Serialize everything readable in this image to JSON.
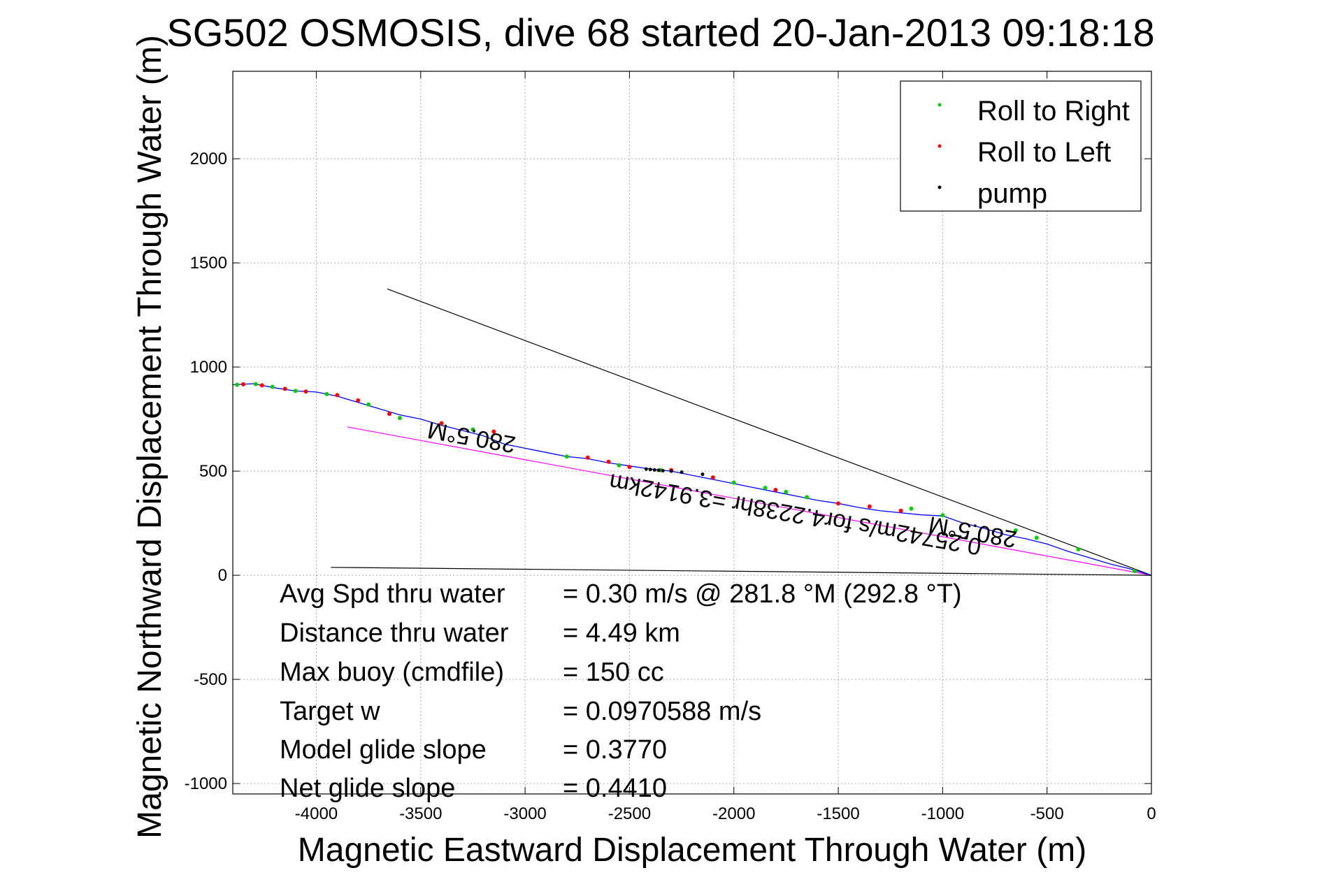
{
  "chart_data": {
    "type": "scatter",
    "title": "SG502 OSMOSIS, dive 68 started 20-Jan-2013 09:18:18",
    "xlabel": "Magnetic Eastward Displacement Through Water (m)",
    "ylabel": "Magnetic Northward Displacement Through Water (m)",
    "xlim": [
      -4400,
      0
    ],
    "ylim": [
      -1050,
      2420
    ],
    "xticks": [
      -4000,
      -3500,
      -3000,
      -2500,
      -2000,
      -1500,
      -1000,
      -500,
      0
    ],
    "xtick_labels": [
      "-4000",
      "-3500",
      "-3000",
      "-2500",
      "-2000",
      "-1500",
      "-1000",
      "-500",
      "0"
    ],
    "yticks": [
      -1000,
      -500,
      0,
      500,
      1000,
      1500,
      2000
    ],
    "ytick_labels": [
      "-1000",
      "-500",
      "0",
      "500",
      "1000",
      "1500",
      "2000"
    ],
    "grid": true,
    "legend_position": "top-right",
    "legend": [
      "Roll to Right",
      "Roll to Left",
      "pump"
    ],
    "colors": {
      "track": "#0000ff",
      "roll_right": "#00cc00",
      "roll_left": "#ff0000",
      "pump": "#000000",
      "current_vector": "#ff00ff",
      "heading_line": "#000000"
    },
    "track": {
      "x": [
        -4400,
        -4300,
        -4200,
        -4100,
        -4000,
        -3900,
        -3800,
        -3700,
        -3600,
        -3500,
        -3400,
        -3300,
        -3200,
        -3100,
        -3000,
        -2900,
        -2800,
        -2700,
        -2600,
        -2500,
        -2400,
        -2300,
        -2200,
        -2100,
        -2000,
        -1900,
        -1800,
        -1700,
        -1600,
        -1500,
        -1400,
        -1300,
        -1200,
        -1100,
        -1000,
        -900,
        -800,
        -700,
        -600,
        -500,
        -400,
        -300,
        -200,
        -100,
        0
      ],
      "y": [
        915,
        920,
        900,
        885,
        880,
        860,
        830,
        800,
        770,
        750,
        720,
        695,
        670,
        630,
        610,
        590,
        570,
        560,
        540,
        525,
        510,
        500,
        480,
        460,
        440,
        420,
        400,
        380,
        360,
        345,
        325,
        310,
        300,
        290,
        285,
        250,
        225,
        195,
        175,
        150,
        115,
        85,
        55,
        30,
        0
      ]
    },
    "roll_right": {
      "x": [
        -4380,
        -4290,
        -4210,
        -4100,
        -3950,
        -3750,
        -3600,
        -3250,
        -2800,
        -2550,
        -2350,
        -2000,
        -1850,
        -1750,
        -1650,
        -1150,
        -1000,
        -650,
        -550,
        -350,
        -80
      ],
      "y": [
        915,
        918,
        905,
        885,
        870,
        820,
        755,
        700,
        570,
        528,
        505,
        445,
        420,
        400,
        375,
        320,
        288,
        215,
        180,
        125,
        20
      ]
    },
    "roll_left": {
      "x": [
        -4350,
        -4260,
        -4150,
        -4050,
        -3900,
        -3800,
        -3650,
        -3400,
        -3150,
        -2700,
        -2600,
        -2500,
        -2300,
        -2100,
        -1800,
        -1500,
        -1350,
        -1200
      ],
      "y": [
        917,
        912,
        895,
        882,
        865,
        840,
        775,
        730,
        690,
        565,
        545,
        520,
        505,
        470,
        410,
        345,
        330,
        310
      ]
    },
    "pump": {
      "x": [
        -2420,
        -2400,
        -2380,
        -2360,
        -2340,
        -2300,
        -2250,
        -2150
      ],
      "y": [
        510,
        508,
        506,
        504,
        502,
        500,
        495,
        485
      ]
    },
    "current_vector": {
      "x": [
        -3850,
        0
      ],
      "y": [
        712,
        0
      ]
    },
    "heading_line": {
      "x": [
        -3660,
        0
      ],
      "y": [
        1375,
        0
      ]
    },
    "bottom_line": {
      "x": [
        -3930,
        0
      ],
      "y": [
        38,
        0
      ]
    },
    "annotations": {
      "heading_a": "280.5°M",
      "heading_b": "280.5°M",
      "current": "0.25742m/s for4.2238hr =3.9142km"
    },
    "stats": [
      {
        "label": "Avg Spd thru water",
        "value": "=  0.30 m/s @ 281.8 °M (292.8 °T)"
      },
      {
        "label": "Distance thru water",
        "value": "=  4.49 km"
      },
      {
        "label": "Max buoy (cmdfile)",
        "value": "= 150 cc"
      },
      {
        "label": "Target w",
        "value": "= 0.0970588 m/s"
      },
      {
        "label": "Model glide slope",
        "value": "= 0.3770"
      },
      {
        "label": "Net glide slope",
        "value": "= 0.4410"
      }
    ]
  }
}
